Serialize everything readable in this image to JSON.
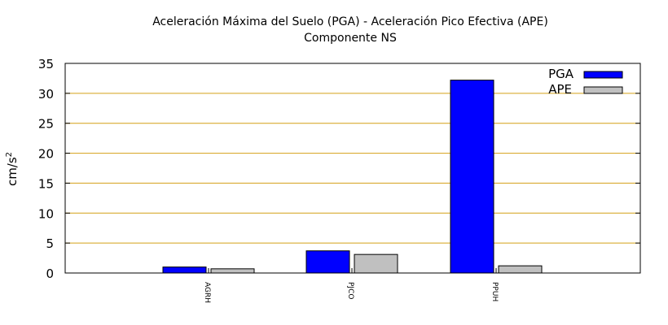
{
  "chart_data": {
    "type": "bar",
    "title_line1": "Aceleración Máxima del Suelo (PGA) -  Aceleración Pico Efectiva (APE)",
    "title_line2": "Componente NS",
    "ylabel_base": "cm/s",
    "ylabel_exp": "2",
    "xlabel": "",
    "categories": [
      "AGRH",
      "PJCO",
      "PPUH"
    ],
    "series": [
      {
        "name": "PGA",
        "color": "#0000ff",
        "values": [
          1.0,
          3.7,
          32.2
        ]
      },
      {
        "name": "APE",
        "color": "#c0c0c0",
        "values": [
          0.7,
          3.1,
          1.2
        ]
      }
    ],
    "ylim": [
      0,
      35
    ],
    "yticks": [
      "0",
      "5",
      "10",
      "15",
      "20",
      "25",
      "30",
      "35"
    ],
    "grid": true,
    "grid_color": "#d4a017",
    "legend_position": "top-right"
  }
}
